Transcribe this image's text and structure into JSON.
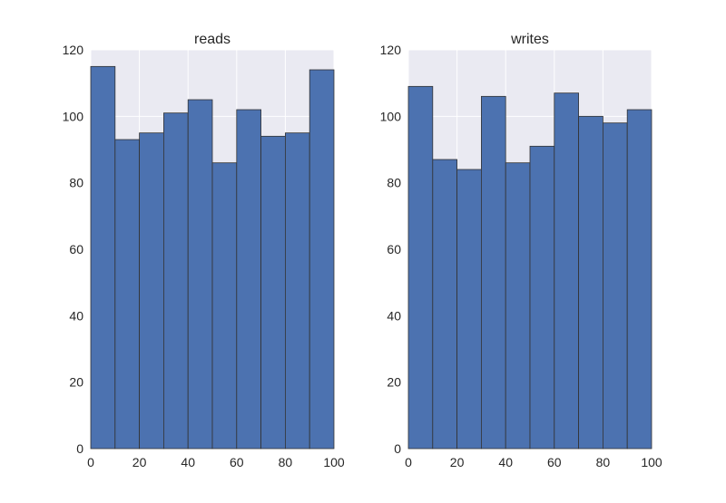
{
  "chart_data": [
    {
      "type": "bar",
      "title": "reads",
      "xlabel": "",
      "ylabel": "",
      "bin_edges": [
        0,
        10,
        20,
        30,
        40,
        50,
        60,
        70,
        80,
        90,
        100
      ],
      "values": [
        115,
        93,
        95,
        101,
        105,
        86,
        102,
        94,
        95,
        114
      ],
      "xlim": [
        0,
        100
      ],
      "ylim": [
        0,
        120
      ],
      "xticks": [
        0,
        20,
        40,
        60,
        80,
        100
      ],
      "yticks": [
        0,
        20,
        40,
        60,
        80,
        100,
        120
      ],
      "grid": true
    },
    {
      "type": "bar",
      "title": "writes",
      "xlabel": "",
      "ylabel": "",
      "bin_edges": [
        0,
        10,
        20,
        30,
        40,
        50,
        60,
        70,
        80,
        90,
        100
      ],
      "values": [
        109,
        87,
        84,
        106,
        86,
        91,
        107,
        100,
        98,
        102
      ],
      "xlim": [
        0,
        100
      ],
      "ylim": [
        0,
        120
      ],
      "xticks": [
        0,
        20,
        40,
        60,
        80,
        100
      ],
      "yticks": [
        0,
        20,
        40,
        60,
        80,
        100,
        120
      ],
      "grid": true
    }
  ],
  "style": {
    "bar_color": "#4C72B0",
    "bar_edge_color": "#333333",
    "plot_background": "#EAEAF2",
    "grid_color": "#ffffff"
  }
}
